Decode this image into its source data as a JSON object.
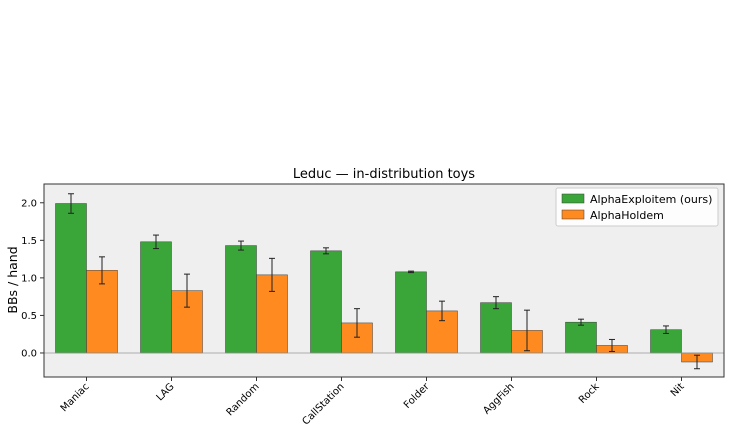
{
  "chart_data": {
    "type": "bar",
    "title": "Leduc — in-distribution toys",
    "xlabel": "",
    "ylabel": "BBs / hand",
    "ylim": [
      -0.32,
      2.25
    ],
    "yticks": [
      0.0,
      0.5,
      1.0,
      1.5,
      2.0
    ],
    "yticklabels": [
      "0.0",
      "0.5",
      "1.0",
      "1.5",
      "2.0"
    ],
    "grid": false,
    "legend_position": "top-right",
    "categories": [
      "Maniac",
      "LAG",
      "Random",
      "CallStation",
      "Folder",
      "AggFish",
      "Rock",
      "Nit"
    ],
    "series": [
      {
        "name": "AlphaExploitem (ours)",
        "color": "#3aa63a",
        "values": [
          1.99,
          1.48,
          1.43,
          1.36,
          1.08,
          0.67,
          0.41,
          0.31
        ],
        "errors": [
          0.13,
          0.09,
          0.06,
          0.04,
          0.01,
          0.08,
          0.04,
          0.05
        ]
      },
      {
        "name": "AlphaHoldem",
        "color": "#ff8a1f",
        "values": [
          1.1,
          0.83,
          1.04,
          0.4,
          0.56,
          0.3,
          0.1,
          -0.12
        ],
        "errors": [
          0.18,
          0.22,
          0.22,
          0.19,
          0.13,
          0.27,
          0.08,
          0.09
        ]
      }
    ]
  }
}
